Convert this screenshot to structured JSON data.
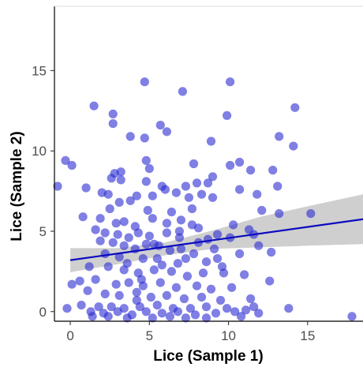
{
  "chart_data": {
    "type": "scatter",
    "title": "",
    "xlabel": "Lice (Sample 1)",
    "ylabel": "Lice (Sample 2)",
    "xlim": [
      -1,
      18.5
    ],
    "ylim": [
      -0.6,
      19
    ],
    "x_ticks": [
      0,
      5,
      10,
      15
    ],
    "y_ticks": [
      0,
      5,
      10,
      15
    ],
    "grid": false,
    "point_color": "#2a2ad2",
    "trend_color": "#0b0bc0",
    "band_color": "#bfbfbf",
    "points": [
      [
        4.7,
        14.3
      ],
      [
        10.1,
        14.3
      ],
      [
        7.1,
        13.7
      ],
      [
        1.5,
        12.8
      ],
      [
        2.7,
        12.3
      ],
      [
        14.2,
        12.7
      ],
      [
        9.9,
        12.2
      ],
      [
        5.7,
        11.6
      ],
      [
        2.7,
        11.7
      ],
      [
        6.1,
        11.2
      ],
      [
        3.8,
        10.9
      ],
      [
        4.7,
        10.8
      ],
      [
        8.9,
        10.6
      ],
      [
        13.2,
        10.9
      ],
      [
        14.1,
        10.3
      ],
      [
        -0.3,
        9.4
      ],
      [
        4.8,
        9.4
      ],
      [
        10.7,
        9.3
      ],
      [
        0.1,
        9.1
      ],
      [
        3.2,
        8.7
      ],
      [
        2.8,
        8.6
      ],
      [
        7.8,
        9.2
      ],
      [
        5.0,
        8.9
      ],
      [
        9.0,
        8.4
      ],
      [
        10.1,
        9.1
      ],
      [
        11.4,
        8.8
      ],
      [
        12.8,
        8.8
      ],
      [
        2.6,
        8.3
      ],
      [
        3.2,
        8.2
      ],
      [
        4.8,
        8.1
      ],
      [
        5.8,
        7.8
      ],
      [
        7.3,
        7.8
      ],
      [
        8.0,
        8.0
      ],
      [
        8.7,
        8.0
      ],
      [
        10.7,
        7.6
      ],
      [
        -0.8,
        7.8
      ],
      [
        1.0,
        7.7
      ],
      [
        2.0,
        7.4
      ],
      [
        2.4,
        7.3
      ],
      [
        3.1,
        6.8
      ],
      [
        4.2,
        7.2
      ],
      [
        5.2,
        7.2
      ],
      [
        6.0,
        7.6
      ],
      [
        6.7,
        7.4
      ],
      [
        7.5,
        7.1
      ],
      [
        8.3,
        7.3
      ],
      [
        9.0,
        7.1
      ],
      [
        11.8,
        7.3
      ],
      [
        13.1,
        7.8
      ],
      [
        3.8,
        6.9
      ],
      [
        4.9,
        6.3
      ],
      [
        6.4,
        6.2
      ],
      [
        7.7,
        6.4
      ],
      [
        12.1,
        6.3
      ],
      [
        13.2,
        6.1
      ],
      [
        15.2,
        6.1
      ],
      [
        0.8,
        5.9
      ],
      [
        1.9,
        5.8
      ],
      [
        2.9,
        5.5
      ],
      [
        3.4,
        5.6
      ],
      [
        5.2,
        5.8
      ],
      [
        6.1,
        5.5
      ],
      [
        7.0,
        5.7
      ],
      [
        7.7,
        5.4
      ],
      [
        10.3,
        5.4
      ],
      [
        11.3,
        5.1
      ],
      [
        1.6,
        5.1
      ],
      [
        2.2,
        4.9
      ],
      [
        3.0,
        4.8
      ],
      [
        3.7,
        4.6
      ],
      [
        4.3,
        4.9
      ],
      [
        5.0,
        4.7
      ],
      [
        6.1,
        4.9
      ],
      [
        6.9,
        4.6
      ],
      [
        8.1,
        4.3
      ],
      [
        8.7,
        4.5
      ],
      [
        9.3,
        4.8
      ],
      [
        10.1,
        4.6
      ],
      [
        11.6,
        4.8
      ],
      [
        1.9,
        4.4
      ],
      [
        2.7,
        4.3
      ],
      [
        3.4,
        4.1
      ],
      [
        4.1,
        3.9
      ],
      [
        4.8,
        4.2
      ],
      [
        5.6,
        4.1
      ],
      [
        6.3,
        3.8
      ],
      [
        7.0,
        3.9
      ],
      [
        7.8,
        3.6
      ],
      [
        9.1,
        3.9
      ],
      [
        10.7,
        3.6
      ],
      [
        11.9,
        4.1
      ],
      [
        12.7,
        3.7
      ],
      [
        2.2,
        3.6
      ],
      [
        3.1,
        3.4
      ],
      [
        4.6,
        3.3
      ],
      [
        5.5,
        3.3
      ],
      [
        6.8,
        3.0
      ],
      [
        8.6,
        3.1
      ],
      [
        9.3,
        3.3
      ],
      [
        1.2,
        2.8
      ],
      [
        2.4,
        2.8
      ],
      [
        3.4,
        2.6
      ],
      [
        4.3,
        2.4
      ],
      [
        5.3,
        2.6
      ],
      [
        6.4,
        2.5
      ],
      [
        7.4,
        2.2
      ],
      [
        8.4,
        2.4
      ],
      [
        9.7,
        2.4
      ],
      [
        11.0,
        2.3
      ],
      [
        12.6,
        1.9
      ],
      [
        0.1,
        1.7
      ],
      [
        0.6,
        1.9
      ],
      [
        1.6,
        2.0
      ],
      [
        2.9,
        1.7
      ],
      [
        3.7,
        1.8
      ],
      [
        4.6,
        1.6
      ],
      [
        5.7,
        1.8
      ],
      [
        6.7,
        1.5
      ],
      [
        8.0,
        1.6
      ],
      [
        8.9,
        1.4
      ],
      [
        10.2,
        1.5
      ],
      [
        1.1,
        1.3
      ],
      [
        2.2,
        1.1
      ],
      [
        3.1,
        1.0
      ],
      [
        4.2,
        1.2
      ],
      [
        5.1,
        0.9
      ],
      [
        6.1,
        1.0
      ],
      [
        7.2,
        0.8
      ],
      [
        8.3,
        0.9
      ],
      [
        9.5,
        0.7
      ],
      [
        11.4,
        0.8
      ],
      [
        0.7,
        0.4
      ],
      [
        1.8,
        0.3
      ],
      [
        2.6,
        0.3
      ],
      [
        3.4,
        0.2
      ],
      [
        4.4,
        0.3
      ],
      [
        5.5,
        0.4
      ],
      [
        6.5,
        0.2
      ],
      [
        7.6,
        0.2
      ],
      [
        8.6,
        0.3
      ],
      [
        9.9,
        0.2
      ],
      [
        11.1,
        0.1
      ],
      [
        11.6,
        0.3
      ],
      [
        13.8,
        0.2
      ],
      [
        -0.2,
        0.2
      ],
      [
        1.3,
        0.0
      ],
      [
        2.1,
        -0.1
      ],
      [
        3.0,
        0.0
      ],
      [
        3.9,
        -0.2
      ],
      [
        4.8,
        0.0
      ],
      [
        5.8,
        -0.1
      ],
      [
        6.8,
        0.0
      ],
      [
        7.9,
        -0.2
      ],
      [
        9.2,
        -0.1
      ],
      [
        10.4,
        0.0
      ],
      [
        1.4,
        -0.3
      ],
      [
        2.4,
        -0.3
      ],
      [
        3.6,
        -0.4
      ],
      [
        5.2,
        -0.4
      ],
      [
        6.3,
        -0.3
      ],
      [
        7.3,
        -0.4
      ],
      [
        8.6,
        -0.4
      ],
      [
        10.8,
        -0.3
      ],
      [
        11.9,
        -0.1
      ],
      [
        17.8,
        -0.3
      ],
      [
        4.1,
        5.3
      ],
      [
        5.3,
        4.2
      ],
      [
        3.6,
        3.0
      ],
      [
        4.5,
        2.0
      ],
      [
        2.5,
        6.4
      ],
      [
        6.9,
        5.0
      ],
      [
        7.3,
        3.3
      ],
      [
        5.8,
        2.9
      ],
      [
        4.2,
        0.7
      ],
      [
        8.1,
        5.2
      ],
      [
        9.6,
        2.8
      ]
    ],
    "trend": {
      "x": [
        0,
        18.5
      ],
      "y": [
        3.2,
        5.75
      ]
    },
    "band": {
      "x": [
        0,
        3,
        6,
        9,
        12,
        15,
        18.5
      ],
      "upper": [
        3.95,
        3.95,
        4.3,
        5.05,
        5.9,
        6.55,
        7.3
      ],
      "lower": [
        2.45,
        2.95,
        3.5,
        3.9,
        4.0,
        4.1,
        4.2
      ]
    }
  }
}
